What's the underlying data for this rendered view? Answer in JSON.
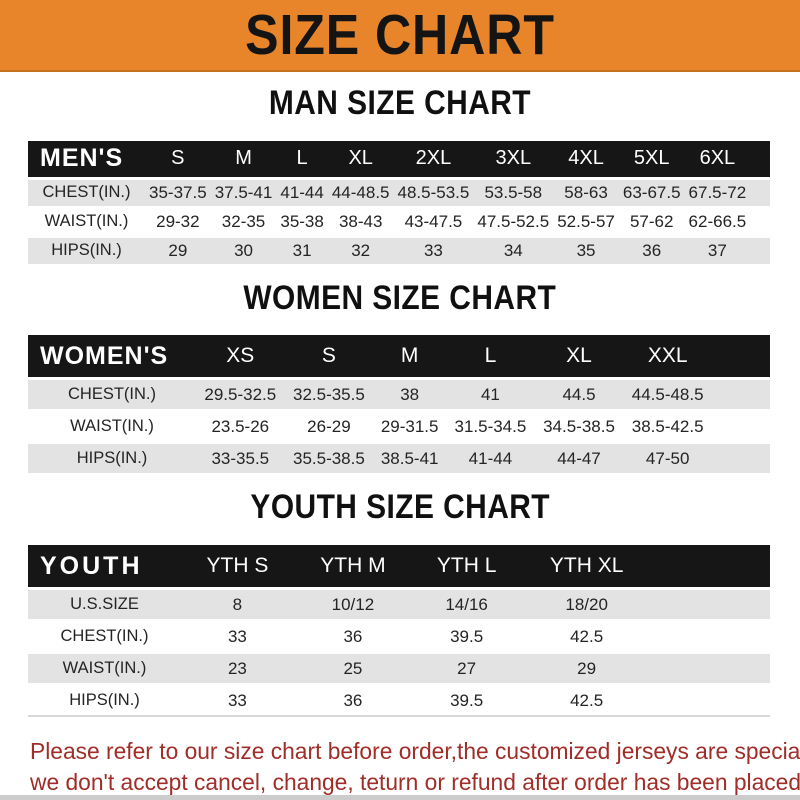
{
  "banner": {
    "title": "SIZE CHART"
  },
  "colors": {
    "banner_bg": "#E8852B",
    "table_header_bg": "#161616",
    "row_stripe_gray": "#E3E3E3",
    "disclaimer_red": "#A02D28"
  },
  "chart_data": [
    {
      "type": "table",
      "title": "MAN SIZE CHART",
      "corner_label": "MEN'S",
      "columns": [
        "S",
        "M",
        "L",
        "XL",
        "2XL",
        "3XL",
        "4XL",
        "5XL",
        "6XL"
      ],
      "rows": [
        {
          "label": "CHEST(IN.)",
          "values": [
            "35-37.5",
            "37.5-41",
            "41-44",
            "44-48.5",
            "48.5-53.5",
            "53.5-58",
            "58-63",
            "63-67.5",
            "67.5-72"
          ]
        },
        {
          "label": "WAIST(IN.)",
          "values": [
            "29-32",
            "32-35",
            "35-38",
            "38-43",
            "43-47.5",
            "47.5-52.5",
            "52.5-57",
            "57-62",
            "62-66.5"
          ]
        },
        {
          "label": "HIPS(IN.)",
          "values": [
            "29",
            "30",
            "31",
            "32",
            "33",
            "34",
            "35",
            "36",
            "37"
          ]
        }
      ]
    },
    {
      "type": "table",
      "title": "WOMEN SIZE CHART",
      "corner_label": "WOMEN'S",
      "columns": [
        "XS",
        "S",
        "M",
        "L",
        "XL",
        "XXL"
      ],
      "rows": [
        {
          "label": "CHEST(IN.)",
          "values": [
            "29.5-32.5",
            "32.5-35.5",
            "38",
            "41",
            "44.5",
            "44.5-48.5"
          ]
        },
        {
          "label": "WAIST(IN.)",
          "values": [
            "23.5-26",
            "26-29",
            "29-31.5",
            "31.5-34.5",
            "34.5-38.5",
            "38.5-42.5"
          ]
        },
        {
          "label": "HIPS(IN.)",
          "values": [
            "33-35.5",
            "35.5-38.5",
            "38.5-41",
            "41-44",
            "44-47",
            "47-50"
          ]
        }
      ]
    },
    {
      "type": "table",
      "title": "YOUTH SIZE CHART",
      "corner_label": "YOUTH",
      "columns": [
        "YTH S",
        "YTH M",
        "YTH L",
        "YTH XL"
      ],
      "rows": [
        {
          "label": "U.S.SIZE",
          "values": [
            "8",
            "10/12",
            "14/16",
            "18/20"
          ]
        },
        {
          "label": "CHEST(IN.)",
          "values": [
            "33",
            "36",
            "39.5",
            "42.5"
          ]
        },
        {
          "label": "WAIST(IN.)",
          "values": [
            "23",
            "25",
            "27",
            "29"
          ]
        },
        {
          "label": "HIPS(IN.)",
          "values": [
            "33",
            "36",
            "39.5",
            "42.5"
          ]
        }
      ]
    }
  ],
  "disclaimer": {
    "line1": "Please refer to our size chart before order,the customized jerseys are special products,",
    "line2": "we don't accept cancel, change, teturn or refund after order has been placed!"
  }
}
